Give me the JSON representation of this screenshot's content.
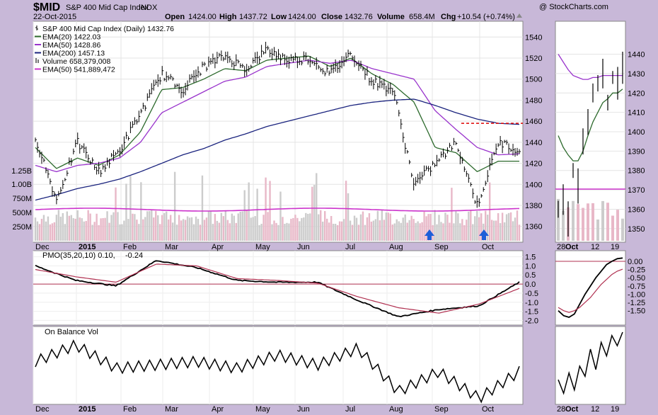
{
  "header": {
    "symbol": "$MID",
    "name": "S&P 400 Mid Cap Index",
    "exchange": "INDX",
    "date": "22-Oct-2015",
    "open_label": "Open",
    "open": "1424.00",
    "high_label": "High",
    "high": "1437.72",
    "low_label": "Low",
    "low": "1424.00",
    "close_label": "Close",
    "close": "1432.76",
    "volume_label": "Volume",
    "volume": "658.4M",
    "chg_label": "Chg",
    "chg": "+10.54 (+0.74%)",
    "watermark": "@ StockCharts.com"
  },
  "legend": [
    {
      "label": "S&P 400 Mid Cap Index (Daily) 1432.76",
      "color": "#000000",
      "icon": "ohlc-bar-icon"
    },
    {
      "label": "EMA(20) 1422.03",
      "color": "#2d6a2d",
      "icon": "line-icon"
    },
    {
      "label": "EMA(50) 1428.86",
      "color": "#9933cc",
      "icon": "line-icon"
    },
    {
      "label": "EMA(200) 1457.13",
      "color": "#1a237e",
      "icon": "line-icon"
    },
    {
      "label": "Volume 658,379,008",
      "color": "#777777",
      "icon": "bar-icon"
    },
    {
      "label": "EMA(50) 541,889,472",
      "color": "#cc33cc",
      "icon": "line-icon"
    }
  ],
  "pmo_label": "PMO(35,20,10) 0.10, -0.24",
  "pmo_label_main": "PMO(35,20,10) 0.10,",
  "pmo_label_signal": "-0.24",
  "obv_label": "On Balance Vol",
  "colors": {
    "price": "#000000",
    "ema20": "#2d6a2d",
    "ema50": "#9933cc",
    "ema200": "#1a237e",
    "volume_up": "#cccccc",
    "volume_down": "#e8b8c8",
    "volume_ema": "#cc33cc",
    "pmo": "#000000",
    "pmo_signal": "#b03050",
    "resistance": "#dd0000",
    "arrow": "#1e5fd8",
    "panel_bg": "#ffffff",
    "frame_bg": "#c8b8d8"
  },
  "chart_data": [
    {
      "type": "line",
      "panel": "price",
      "ylim": [
        1345,
        1555
      ],
      "y_ticks": [
        1360,
        1380,
        1400,
        1420,
        1440,
        1460,
        1480,
        1500,
        1520,
        1540
      ],
      "volume_ticks": [
        "250M",
        "500M",
        "750M",
        "1.00B",
        "1.25B"
      ],
      "x_tick_labels": [
        "Dec",
        "2015",
        "Feb",
        "Mar",
        "Apr",
        "May",
        "Jun",
        "Jul",
        "Aug",
        "Sep",
        "Oct"
      ],
      "x": [
        "2014-12-01",
        "2014-12-16",
        "2015-01-02",
        "2015-01-16",
        "2015-02-02",
        "2015-02-16",
        "2015-03-02",
        "2015-03-16",
        "2015-04-01",
        "2015-04-16",
        "2015-05-01",
        "2015-05-15",
        "2015-06-01",
        "2015-06-15",
        "2015-07-01",
        "2015-07-15",
        "2015-08-03",
        "2015-08-17",
        "2015-08-24",
        "2015-09-01",
        "2015-09-15",
        "2015-10-01",
        "2015-10-15",
        "2015-10-22"
      ],
      "series": [
        {
          "name": "S&P 400 Mid Cap Index (Daily)",
          "values": [
            1445,
            1385,
            1440,
            1412,
            1432,
            1468,
            1505,
            1490,
            1512,
            1522,
            1510,
            1528,
            1518,
            1520,
            1505,
            1525,
            1498,
            1490,
            1400,
            1420,
            1440,
            1380,
            1440,
            1433
          ]
        },
        {
          "name": "EMA(20)",
          "values": [
            1435,
            1415,
            1425,
            1418,
            1428,
            1450,
            1490,
            1492,
            1500,
            1510,
            1508,
            1518,
            1520,
            1522,
            1512,
            1520,
            1505,
            1495,
            1478,
            1435,
            1430,
            1412,
            1422,
            1422
          ]
        },
        {
          "name": "EMA(50)",
          "values": [
            1418,
            1412,
            1418,
            1420,
            1425,
            1440,
            1468,
            1478,
            1488,
            1498,
            1502,
            1512,
            1515,
            1518,
            1515,
            1518,
            1510,
            1505,
            1500,
            1470,
            1452,
            1435,
            1428,
            1429
          ]
        },
        {
          "name": "EMA(200)",
          "values": [
            1385,
            1390,
            1396,
            1400,
            1405,
            1412,
            1420,
            1428,
            1434,
            1442,
            1448,
            1455,
            1460,
            1465,
            1470,
            1475,
            1478,
            1480,
            1481,
            1475,
            1468,
            1462,
            1458,
            1457
          ]
        }
      ],
      "resistance_level": 1458
    },
    {
      "type": "line",
      "panel": "pmo",
      "ylim": [
        -2.1,
        1.6
      ],
      "y_ticks": [
        "1.5",
        "1.0",
        "0.5",
        "0.0",
        "-0.5",
        "-1.0",
        "-1.5",
        "-2.0"
      ],
      "zero_line": 0,
      "x": [
        "2014-12-01",
        "2015-01-02",
        "2015-02-02",
        "2015-03-02",
        "2015-04-01",
        "2015-05-01",
        "2015-06-01",
        "2015-07-01",
        "2015-08-03",
        "2015-08-24",
        "2015-09-15",
        "2015-10-01",
        "2015-10-22"
      ],
      "series": [
        {
          "name": "PMO(35,20,10)",
          "values": [
            1.0,
            0.2,
            -0.1,
            1.3,
            0.9,
            0.2,
            0.1,
            0.1,
            -0.9,
            -1.8,
            -1.4,
            -1.2,
            0.1
          ]
        },
        {
          "name": "Signal",
          "values": [
            0.8,
            0.4,
            0.1,
            1.1,
            1.0,
            0.3,
            0.2,
            0.05,
            -0.7,
            -1.3,
            -1.6,
            -1.1,
            -0.24
          ]
        }
      ]
    },
    {
      "type": "line",
      "panel": "obv",
      "x": [
        "2014-12-01",
        "2015-01-02",
        "2015-02-02",
        "2015-03-02",
        "2015-04-01",
        "2015-05-01",
        "2015-06-01",
        "2015-07-01",
        "2015-08-03",
        "2015-08-24",
        "2015-09-15",
        "2015-10-01",
        "2015-10-22"
      ],
      "series": [
        {
          "name": "On Balance Vol",
          "values": [
            0.6,
            0.85,
            0.5,
            0.55,
            0.6,
            0.5,
            0.7,
            0.55,
            0.8,
            0.15,
            0.45,
            0.05,
            0.45
          ]
        }
      ]
    },
    {
      "type": "line",
      "panel": "zoom-price",
      "ylim": [
        1343,
        1457
      ],
      "y_ticks": [
        1350,
        1360,
        1370,
        1380,
        1390,
        1400,
        1410,
        1420,
        1430,
        1440
      ],
      "x_tick_labels": [
        "28",
        "Oct",
        "12",
        "19"
      ],
      "series": [
        {
          "name": "Close",
          "values": [
            1360,
            1365,
            1355,
            1380,
            1372,
            1395,
            1405,
            1420,
            1425,
            1430,
            1415,
            1428,
            1425,
            1433
          ]
        },
        {
          "name": "EMA(20)",
          "values": [
            1398,
            1392,
            1388,
            1385,
            1385,
            1390,
            1398,
            1405,
            1410,
            1415,
            1417,
            1420,
            1420,
            1422
          ]
        },
        {
          "name": "EMA(50)",
          "values": [
            1440,
            1436,
            1432,
            1429,
            1428,
            1427,
            1427,
            1428,
            1428,
            1429,
            1429,
            1429,
            1429,
            1429
          ]
        }
      ]
    },
    {
      "type": "line",
      "panel": "zoom-pmo",
      "ylim": [
        -1.85,
        0.15
      ],
      "y_ticks": [
        "0.00",
        "-0.25",
        "-0.50",
        "-0.75",
        "-1.00",
        "-1.25",
        "-1.50"
      ],
      "series": [
        {
          "name": "PMO",
          "values": [
            -1.5,
            -1.65,
            -1.7,
            -1.6,
            -1.3,
            -1.0,
            -0.75,
            -0.5,
            -0.3,
            -0.1,
            0.0,
            0.08,
            0.1
          ]
        },
        {
          "name": "Signal",
          "values": [
            -1.4,
            -1.5,
            -1.55,
            -1.5,
            -1.4,
            -1.25,
            -1.1,
            -0.9,
            -0.7,
            -0.55,
            -0.4,
            -0.3,
            -0.24
          ]
        }
      ]
    }
  ]
}
